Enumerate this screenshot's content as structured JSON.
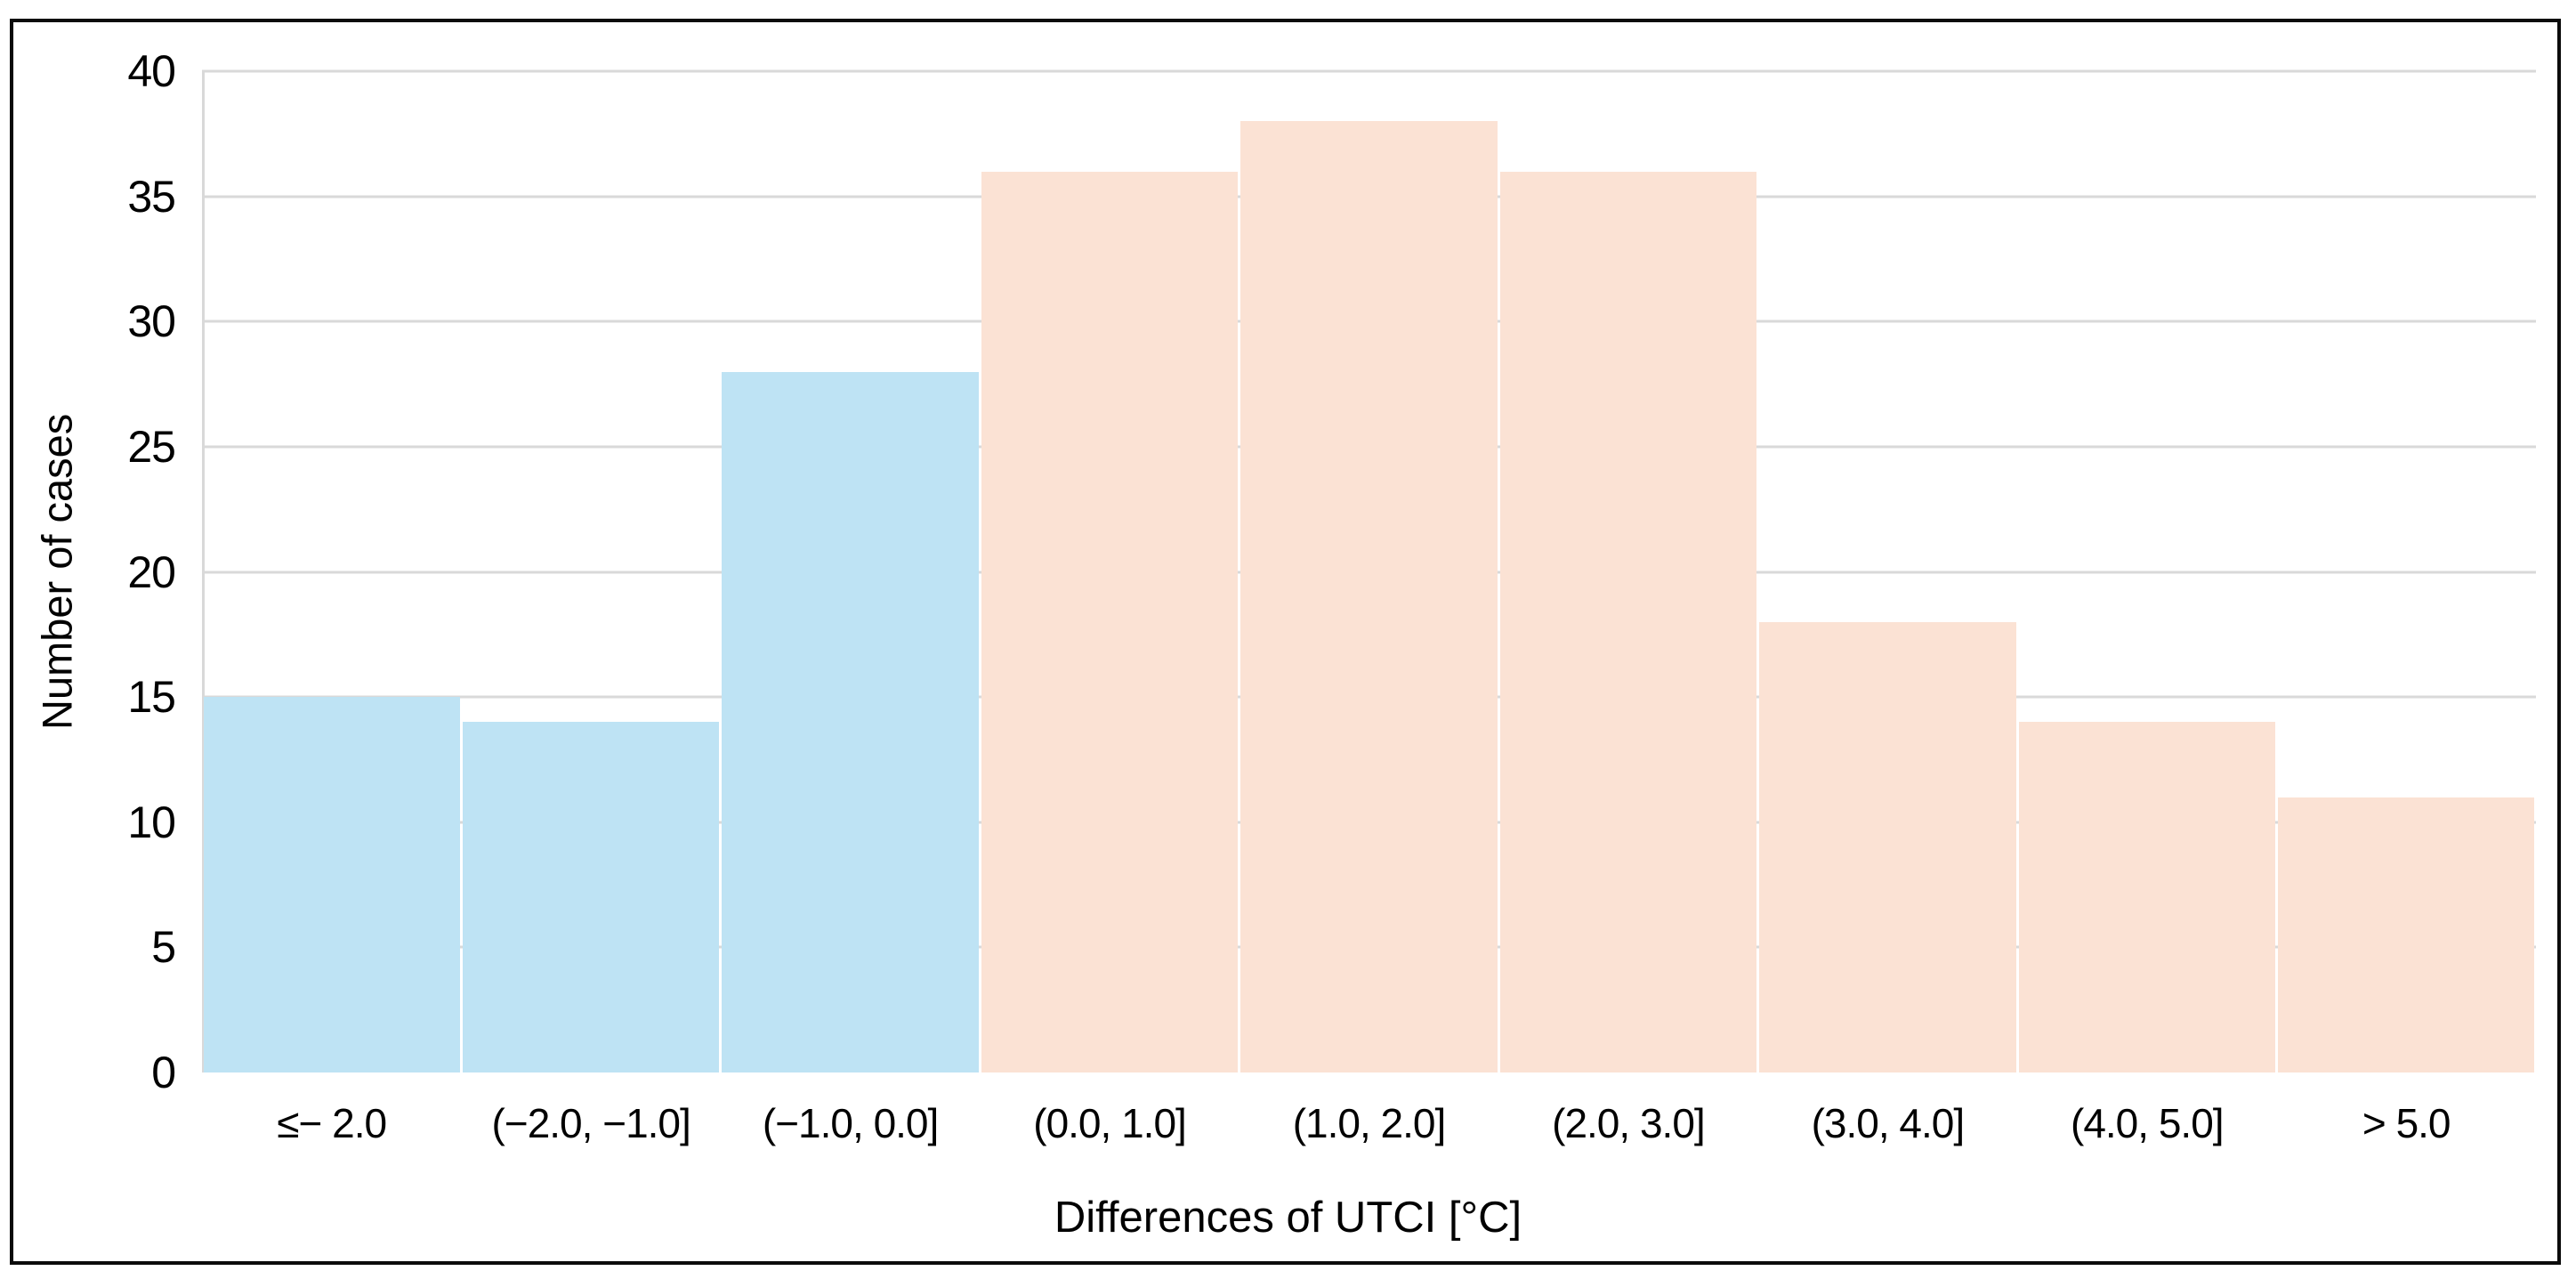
{
  "chart_data": {
    "type": "bar",
    "title": "",
    "xlabel": "Differences of UTCI [°C]",
    "ylabel": "Number of cases",
    "categories": [
      "≤− 2.0",
      "(−2.0, −1.0]",
      "(−1.0, 0.0]",
      "(0.0, 1.0]",
      "(1.0, 2.0]",
      "(2.0, 3.0]",
      "(3.0, 4.0]",
      "(4.0, 5.0]",
      "> 5.0"
    ],
    "values": [
      15,
      14,
      28,
      36,
      38,
      36,
      18,
      14,
      11
    ],
    "ylim": [
      0,
      40
    ],
    "yticks": [
      0,
      5,
      10,
      15,
      20,
      25,
      30,
      35,
      40
    ],
    "grid": "horizontal",
    "legend": "none",
    "bar_colors": [
      "#BEE3F4",
      "#BEE3F4",
      "#BEE3F4",
      "#FBE2D4",
      "#FBE2D4",
      "#FBE2D4",
      "#FBE2D4",
      "#FBE2D4",
      "#FBE2D4"
    ],
    "gridline_color": "#D9D9D9",
    "axis_line_color": "#D9D9D9",
    "frame_color": "#0B0B0B",
    "text_color": "#000000"
  }
}
